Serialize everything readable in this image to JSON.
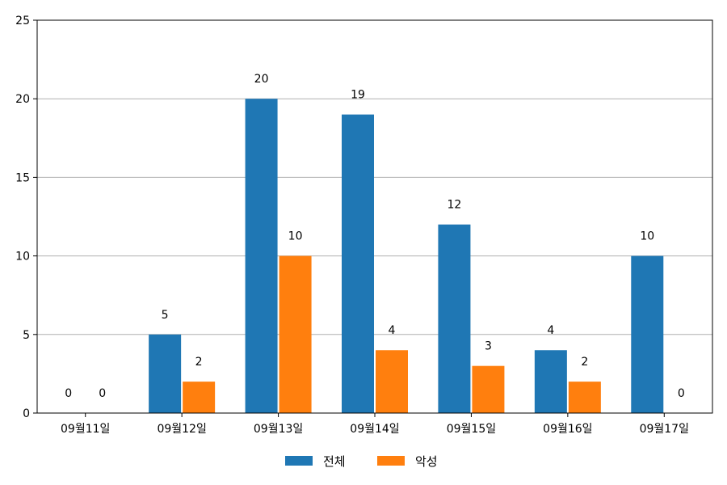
{
  "chart_data": {
    "type": "bar",
    "categories": [
      "09월11일",
      "09월12일",
      "09월13일",
      "09월14일",
      "09월15일",
      "09월16일",
      "09월17일"
    ],
    "series": [
      {
        "name": "전체",
        "values": [
          0,
          5,
          20,
          19,
          12,
          4,
          10
        ],
        "color": "#1f77b4"
      },
      {
        "name": "악성",
        "values": [
          0,
          2,
          10,
          4,
          3,
          2,
          0
        ],
        "color": "#ff7f0e"
      }
    ],
    "y_ticks": [
      "0",
      "5",
      "10",
      "15",
      "20",
      "25"
    ],
    "ylim": [
      0,
      25
    ],
    "grid": "horizontal",
    "legend_position": "bottom-center",
    "data_labels": true
  }
}
